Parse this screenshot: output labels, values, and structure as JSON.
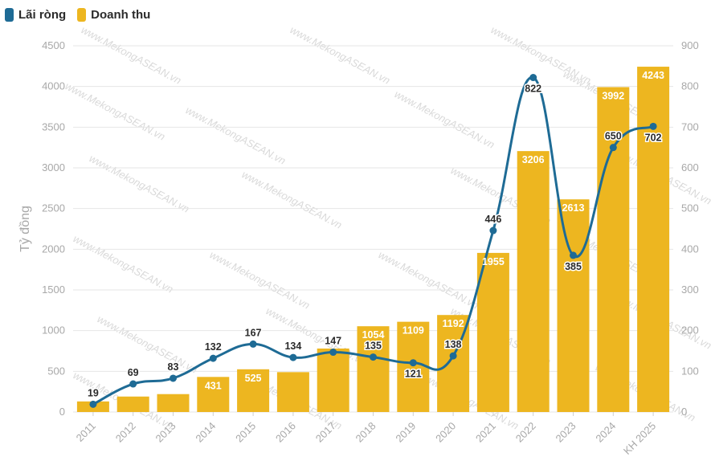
{
  "legend": {
    "line_label": "Lãi ròng",
    "bar_label": "Doanh thu"
  },
  "watermark": "www.MekongASEAN.vn",
  "colors": {
    "bar": "#EDB620",
    "line": "#1E6B95",
    "grid": "#e6e6e6",
    "axis_text": "#a8a8a8"
  },
  "chart_data": {
    "type": "bar+line",
    "categories": [
      "2011",
      "2012",
      "2013",
      "2014",
      "2015",
      "2016",
      "2017",
      "2018",
      "2019",
      "2020",
      "2021",
      "2022",
      "2023",
      "2024",
      "KH 2025"
    ],
    "series": [
      {
        "name": "Doanh thu",
        "type": "bar",
        "axis": "left",
        "values": [
          null,
          null,
          null,
          431,
          525,
          null,
          null,
          1054,
          1109,
          1192,
          1955,
          3206,
          2613,
          3992,
          4243
        ],
        "approx_values": [
          130,
          190,
          220,
          431,
          525,
          490,
          780,
          1054,
          1109,
          1192,
          1955,
          3206,
          2613,
          3992,
          4243
        ]
      },
      {
        "name": "Lãi ròng",
        "type": "line",
        "axis": "right",
        "values": [
          19,
          69,
          83,
          132,
          167,
          134,
          147,
          135,
          121,
          138,
          446,
          822,
          385,
          650,
          702
        ]
      }
    ],
    "ylabel": "Tỷ đồng",
    "y_left": {
      "min": 0,
      "max": 4500,
      "ticks": [
        0,
        500,
        1000,
        1500,
        2000,
        2500,
        3000,
        3500,
        4000,
        4500
      ]
    },
    "y_right": {
      "min": 0,
      "max": 900,
      "ticks": [
        0,
        100,
        200,
        300,
        400,
        500,
        600,
        700,
        800,
        900
      ]
    },
    "legend_position": "top-left",
    "grid": true
  }
}
